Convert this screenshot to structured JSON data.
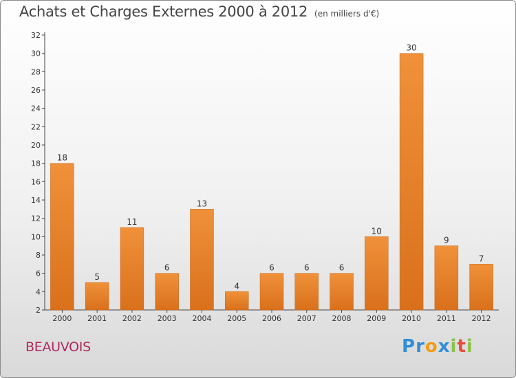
{
  "chart_data": {
    "type": "bar",
    "title": "Achats et Charges Externes 2000 à 2012",
    "subtitle": "(en milliers d'€)",
    "categories": [
      "2000",
      "2001",
      "2002",
      "2003",
      "2004",
      "2005",
      "2006",
      "2007",
      "2008",
      "2009",
      "2010",
      "2011",
      "2012"
    ],
    "values": [
      18,
      5,
      11,
      6,
      13,
      4,
      6,
      6,
      6,
      10,
      30,
      9,
      7
    ],
    "ylim": [
      2,
      32
    ],
    "yticks": [
      2,
      4,
      6,
      8,
      10,
      12,
      14,
      16,
      18,
      20,
      22,
      24,
      26,
      28,
      30,
      32
    ],
    "grid": false,
    "bar_color": "#f0913a",
    "bar_color_dark": "#d9701c"
  },
  "commune": "BEAUVOIS",
  "logo": {
    "text": "Proxiti",
    "letters": [
      {
        "ch": "P",
        "color": "#2f8fd6"
      },
      {
        "ch": "r",
        "color": "#2f8fd6"
      },
      {
        "ch": "o",
        "color": "#f39c12"
      },
      {
        "ch": "x",
        "color": "#2f8fd6"
      },
      {
        "ch": "i",
        "color": "#8bc34a"
      },
      {
        "ch": "t",
        "color": "#e74c3c"
      },
      {
        "ch": "i",
        "color": "#8bc34a"
      }
    ]
  }
}
